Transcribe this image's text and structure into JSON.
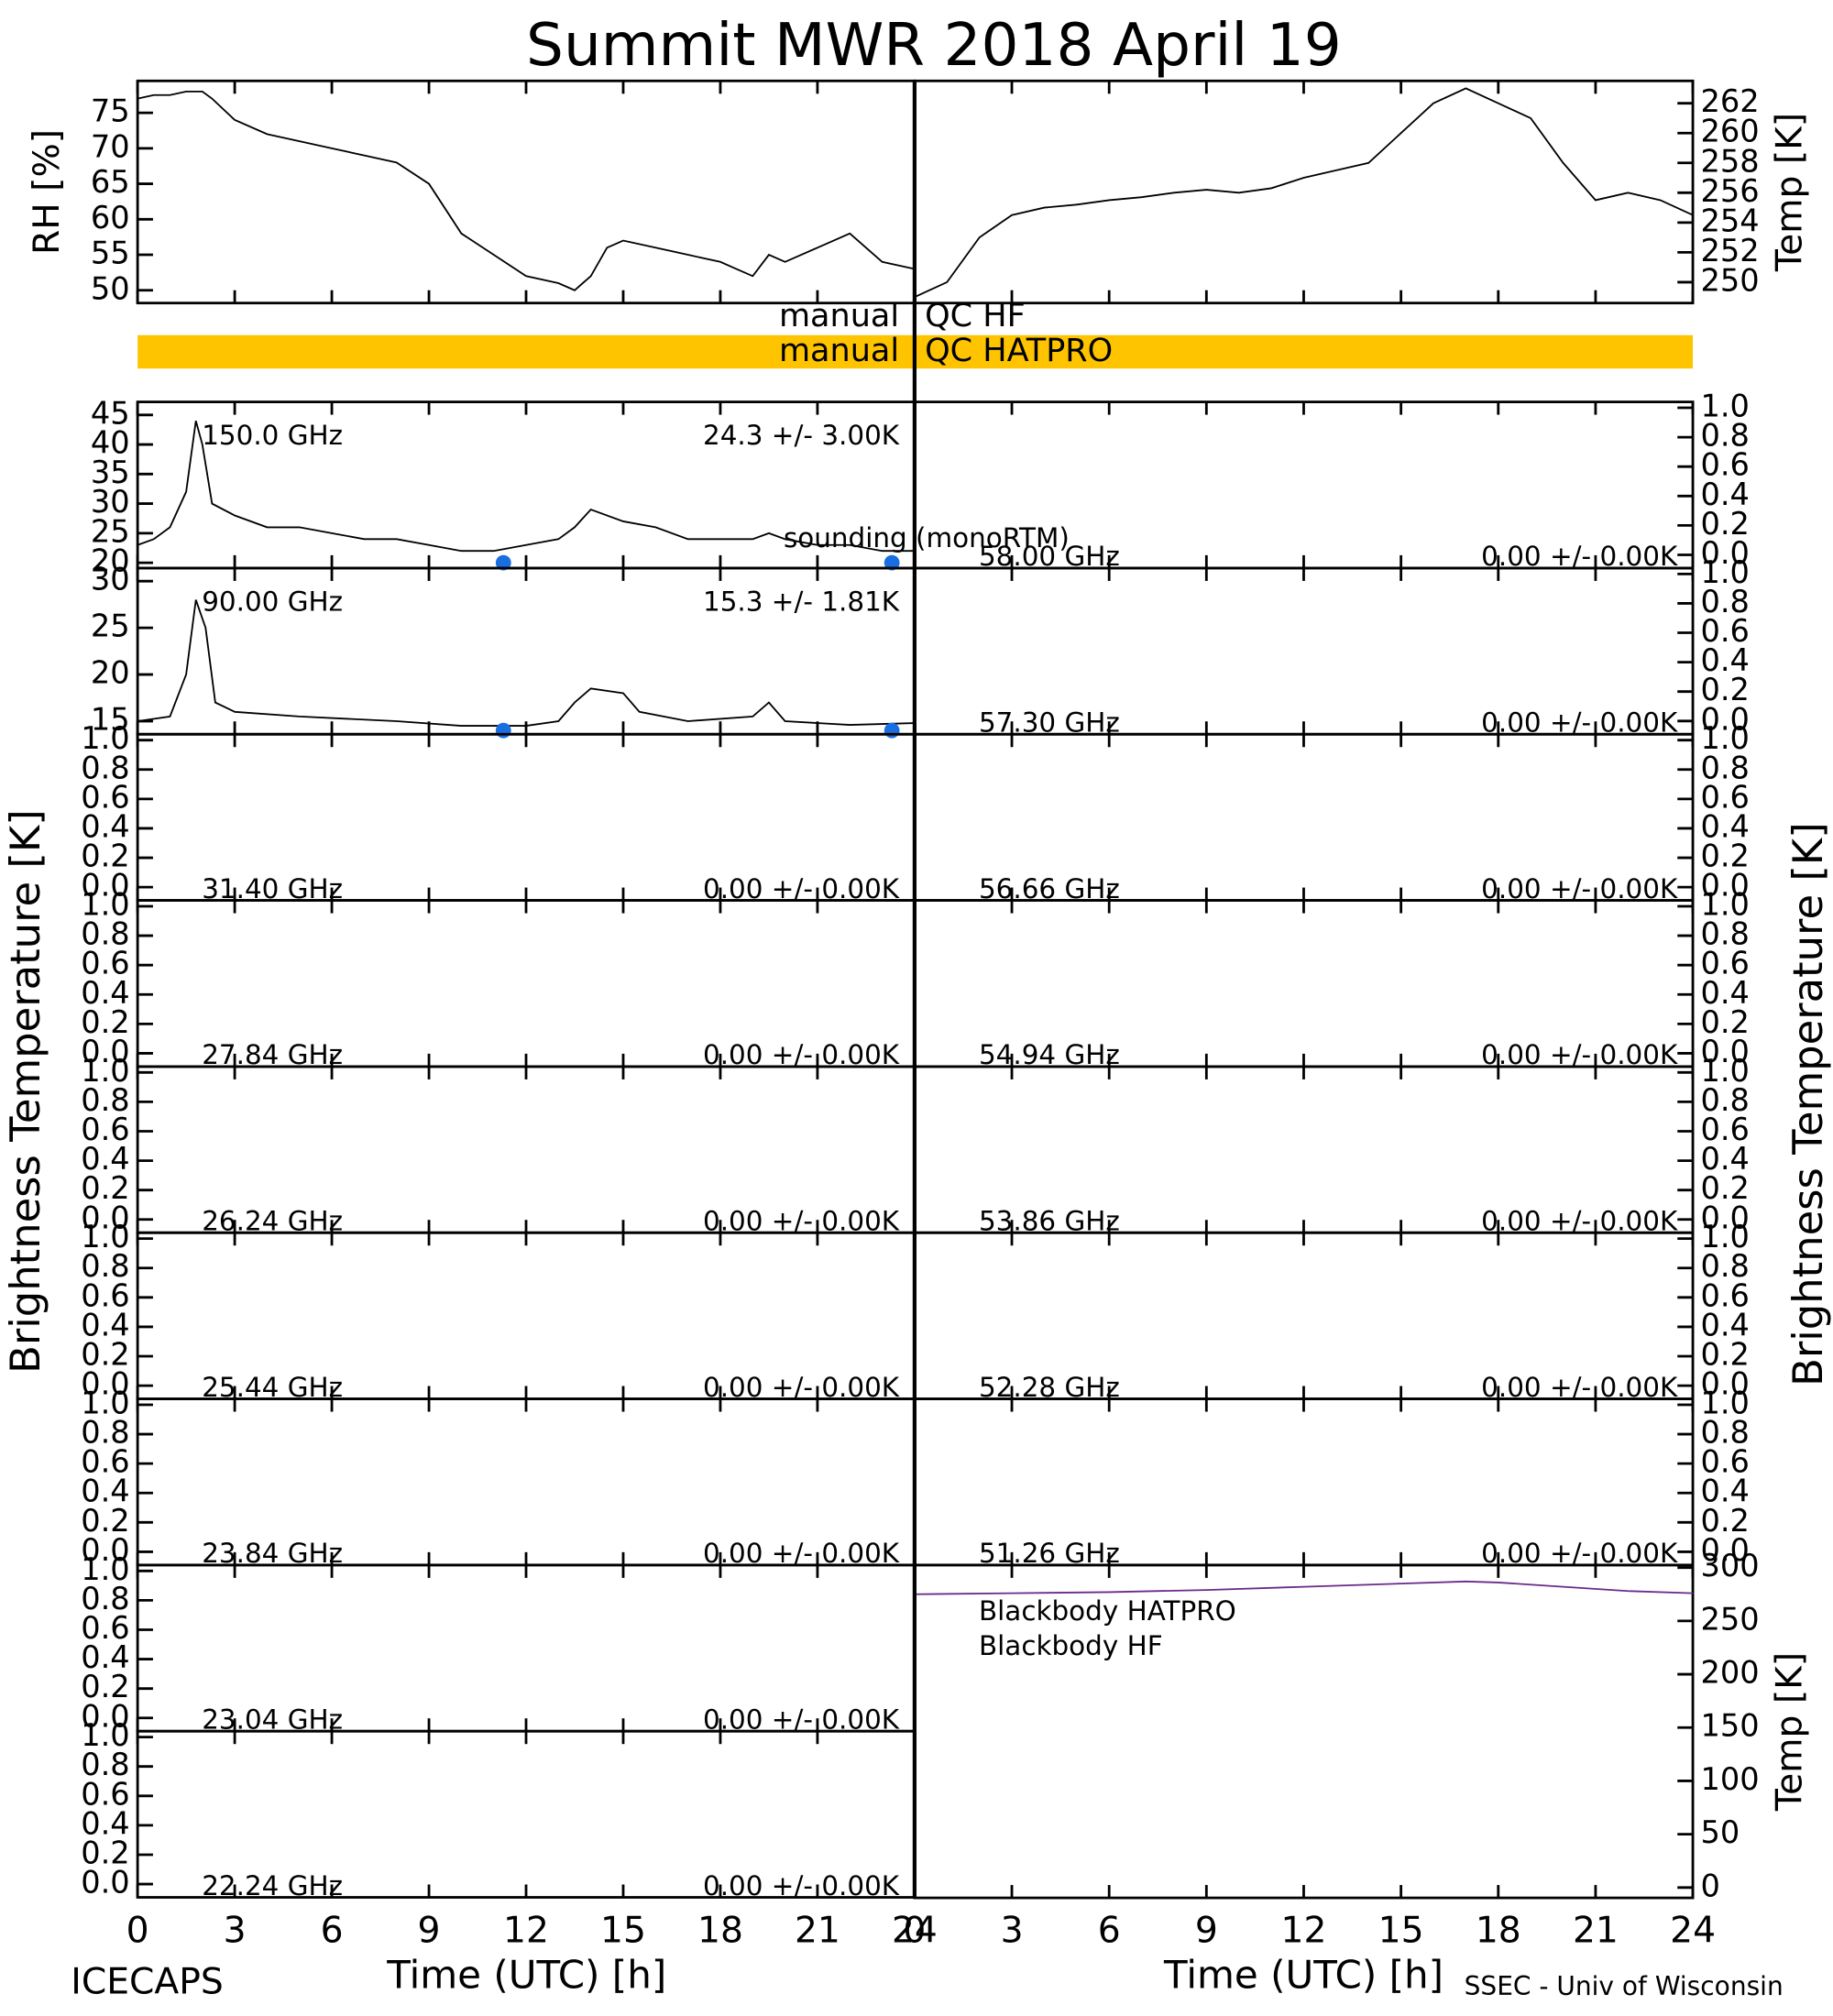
{
  "title": "Summit MWR 2018 April 19",
  "time_axis": {
    "xlim": [
      0,
      24
    ],
    "xticks": [
      0,
      3,
      6,
      9,
      12,
      15,
      18,
      21,
      24
    ],
    "label": "Time (UTC) [h]"
  },
  "brightness_label": "Brightness Temperature [K]",
  "qc": [
    {
      "prefix": "manual",
      "label": "QC HF"
    },
    {
      "prefix": "manual",
      "label": "QC HATPRO",
      "color": "#ffc400"
    }
  ],
  "footer": {
    "left": "ICECAPS",
    "right": "SSEC - Univ of Wisconsin"
  },
  "chart_data": [
    {
      "type": "line",
      "ylabel": "RH [%]",
      "ylim": [
        48.2,
        79.5
      ],
      "yticks": [
        50,
        55,
        60,
        65,
        70,
        75
      ],
      "series": [
        {
          "color": "#000000",
          "x": [
            0,
            0.5,
            1,
            1.5,
            2,
            2.3,
            3,
            4,
            5,
            6,
            7,
            8,
            9,
            10,
            11,
            12,
            13,
            13.5,
            14,
            14.5,
            15,
            16,
            17,
            18,
            18.5,
            19,
            19.5,
            20,
            21,
            22,
            23,
            24
          ],
          "values": [
            77,
            77.5,
            77.5,
            78,
            78,
            77,
            74,
            72,
            71,
            70,
            69,
            68,
            65,
            58,
            55,
            52,
            51,
            50,
            52,
            56,
            57,
            56,
            55,
            54,
            53,
            52,
            55,
            54,
            56,
            58,
            54,
            53
          ]
        }
      ]
    },
    {
      "type": "line",
      "ylabel": "Temp [K]",
      "ylim": [
        248.6,
        263.5
      ],
      "yticks": [
        250,
        252,
        254,
        256,
        258,
        260,
        262
      ],
      "series": [
        {
          "color": "#000000",
          "x": [
            0,
            1,
            2,
            3,
            4,
            5,
            6,
            7,
            8,
            9,
            10,
            11,
            12,
            13,
            14,
            15,
            16,
            17,
            18,
            19,
            20,
            21,
            22,
            23,
            24
          ],
          "values": [
            249,
            250,
            253,
            254.5,
            255,
            255.2,
            255.5,
            255.7,
            256,
            256.2,
            256,
            256.3,
            257,
            257.5,
            258,
            260,
            262,
            263,
            262,
            261,
            258,
            255.5,
            256,
            255.5,
            254.5
          ]
        }
      ]
    },
    {
      "type": "line",
      "label": "150.0 GHz",
      "stats": "24.3 +/-  3.00K",
      "ylim": [
        19.1,
        47.2
      ],
      "yticks": [
        20,
        25,
        30,
        35,
        40,
        45
      ],
      "series": [
        {
          "color": "#000000",
          "x": [
            0,
            0.5,
            1,
            1.5,
            1.8,
            2,
            2.3,
            3,
            4,
            5,
            6,
            7,
            8,
            9,
            10,
            11,
            12,
            13,
            13.5,
            14,
            15,
            16,
            17,
            18,
            19,
            19.5,
            20,
            21,
            22,
            23,
            24
          ],
          "values": [
            23,
            24,
            26,
            32,
            44,
            40,
            30,
            28,
            26,
            26,
            25,
            24,
            24,
            23,
            22,
            22,
            23,
            24,
            26,
            29,
            27,
            26,
            24,
            24,
            24,
            25,
            24,
            23,
            23,
            22,
            22
          ]
        },
        {
          "name": "sounding (monoRTM)",
          "color": "#1a6fe0",
          "marker": "circle",
          "x": [
            11.3,
            23.3
          ],
          "values": [
            20,
            20
          ]
        }
      ]
    },
    {
      "type": "line",
      "label": "90.00 GHz",
      "stats": "15.3 +/-  1.81K",
      "ylim": [
        13.6,
        31.4
      ],
      "yticks": [
        15,
        20,
        25,
        30
      ],
      "series": [
        {
          "color": "#000000",
          "x": [
            0,
            1,
            1.5,
            1.8,
            2.1,
            2.4,
            3,
            5,
            8,
            10,
            12,
            13,
            13.5,
            14,
            15,
            15.5,
            17,
            19,
            19.5,
            20,
            22,
            24
          ],
          "values": [
            15,
            15.5,
            20,
            28,
            25,
            17,
            16,
            15.5,
            15,
            14.5,
            14.5,
            15,
            17,
            18.5,
            18,
            16,
            15,
            15.5,
            17,
            15,
            14.6,
            14.8
          ]
        },
        {
          "color": "#1a6fe0",
          "marker": "circle",
          "x": [
            11.3,
            23.3
          ],
          "values": [
            14,
            14
          ]
        }
      ]
    },
    {
      "type": "line",
      "label": "31.40 GHz",
      "stats": "0.00 +/-  0.00K",
      "ylim": [
        -0.09,
        1.04
      ],
      "yticks": [
        {
          "value": 0,
          "label": "0.0"
        },
        0.2,
        0.4,
        0.6,
        0.8,
        {
          "value": 1,
          "label": "1.0"
        }
      ],
      "series": []
    },
    {
      "type": "line",
      "label": "27.84 GHz",
      "stats": "0.00 +/-  0.00K",
      "ylim": [
        -0.09,
        1.04
      ],
      "yticks": [
        {
          "value": 0,
          "label": "0.0"
        },
        0.2,
        0.4,
        0.6,
        0.8,
        {
          "value": 1,
          "label": "1.0"
        }
      ],
      "series": []
    },
    {
      "type": "line",
      "label": "26.24 GHz",
      "stats": "0.00 +/-  0.00K",
      "ylim": [
        -0.09,
        1.04
      ],
      "yticks": [
        {
          "value": 0,
          "label": "0.0"
        },
        0.2,
        0.4,
        0.6,
        0.8,
        {
          "value": 1,
          "label": "1.0"
        }
      ],
      "series": []
    },
    {
      "type": "line",
      "label": "25.44 GHz",
      "stats": "0.00 +/-  0.00K",
      "ylim": [
        -0.09,
        1.04
      ],
      "yticks": [
        {
          "value": 0,
          "label": "0.0"
        },
        0.2,
        0.4,
        0.6,
        0.8,
        {
          "value": 1,
          "label": "1.0"
        }
      ],
      "series": []
    },
    {
      "type": "line",
      "label": "23.84 GHz",
      "stats": "0.00 +/-  0.00K",
      "ylim": [
        -0.09,
        1.04
      ],
      "yticks": [
        {
          "value": 0,
          "label": "0.0"
        },
        0.2,
        0.4,
        0.6,
        0.8,
        {
          "value": 1,
          "label": "1.0"
        }
      ],
      "series": []
    },
    {
      "type": "line",
      "label": "23.04 GHz",
      "stats": "0.00 +/-  0.00K",
      "ylim": [
        -0.09,
        1.04
      ],
      "yticks": [
        {
          "value": 0,
          "label": "0.0"
        },
        0.2,
        0.4,
        0.6,
        0.8,
        {
          "value": 1,
          "label": "1.0"
        }
      ],
      "series": []
    },
    {
      "type": "line",
      "label": "22.24 GHz",
      "stats": "0.00 +/-  0.00K",
      "ylim": [
        -0.09,
        1.04
      ],
      "yticks": [
        {
          "value": 0,
          "label": "0.0"
        },
        0.2,
        0.4,
        0.6,
        0.8,
        {
          "value": 1,
          "label": "1.0"
        }
      ],
      "series": []
    },
    {
      "type": "line",
      "label": "58.00 GHz",
      "stats": "0.00 +/-  0.00K",
      "ylim": [
        -0.09,
        1.04
      ],
      "yticks": [
        {
          "value": 0,
          "label": "0.0"
        },
        0.2,
        0.4,
        0.6,
        0.8,
        {
          "value": 1,
          "label": "1.0"
        }
      ],
      "series": []
    },
    {
      "type": "line",
      "label": "57.30 GHz",
      "stats": "0.00 +/-  0.00K",
      "ylim": [
        -0.09,
        1.04
      ],
      "yticks": [
        {
          "value": 0,
          "label": "0.0"
        },
        0.2,
        0.4,
        0.6,
        0.8,
        {
          "value": 1,
          "label": "1.0"
        }
      ],
      "series": []
    },
    {
      "type": "line",
      "label": "56.66 GHz",
      "stats": "0.00 +/-  0.00K",
      "ylim": [
        -0.09,
        1.04
      ],
      "yticks": [
        {
          "value": 0,
          "label": "0.0"
        },
        0.2,
        0.4,
        0.6,
        0.8,
        {
          "value": 1,
          "label": "1.0"
        }
      ],
      "series": []
    },
    {
      "type": "line",
      "label": "54.94 GHz",
      "stats": "0.00 +/-  0.00K",
      "ylim": [
        -0.09,
        1.04
      ],
      "yticks": [
        {
          "value": 0,
          "label": "0.0"
        },
        0.2,
        0.4,
        0.6,
        0.8,
        {
          "value": 1,
          "label": "1.0"
        }
      ],
      "series": []
    },
    {
      "type": "line",
      "label": "53.86 GHz",
      "stats": "0.00 +/-  0.00K",
      "ylim": [
        -0.09,
        1.04
      ],
      "yticks": [
        {
          "value": 0,
          "label": "0.0"
        },
        0.2,
        0.4,
        0.6,
        0.8,
        {
          "value": 1,
          "label": "1.0"
        }
      ],
      "series": []
    },
    {
      "type": "line",
      "label": "52.28 GHz",
      "stats": "0.00 +/-  0.00K",
      "ylim": [
        -0.09,
        1.04
      ],
      "yticks": [
        {
          "value": 0,
          "label": "0.0"
        },
        0.2,
        0.4,
        0.6,
        0.8,
        {
          "value": 1,
          "label": "1.0"
        }
      ],
      "series": []
    },
    {
      "type": "line",
      "label": "51.26 GHz",
      "stats": "0.00 +/-  0.00K",
      "ylim": [
        -0.09,
        1.04
      ],
      "yticks": [
        {
          "value": 0,
          "label": "0.0"
        },
        0.2,
        0.4,
        0.6,
        0.8,
        {
          "value": 1,
          "label": "1.0"
        }
      ],
      "series": []
    },
    {
      "type": "line",
      "ylabel": "Temp [K]",
      "ylim": [
        -9.7,
        302.4
      ],
      "yticks": [
        0,
        50,
        100,
        150,
        200,
        250,
        300
      ],
      "series": [
        {
          "name": "Blackbody HATPRO",
          "color": "#1a6fe0",
          "x": [],
          "values": []
        },
        {
          "name": "Blackbody HF",
          "color": "#6a2a8a",
          "x": [
            0,
            3,
            6,
            9,
            12,
            15,
            17,
            18,
            20,
            22,
            24
          ],
          "values": [
            275,
            276,
            277,
            279,
            282,
            285,
            287,
            286,
            282,
            278,
            276
          ]
        }
      ]
    }
  ]
}
